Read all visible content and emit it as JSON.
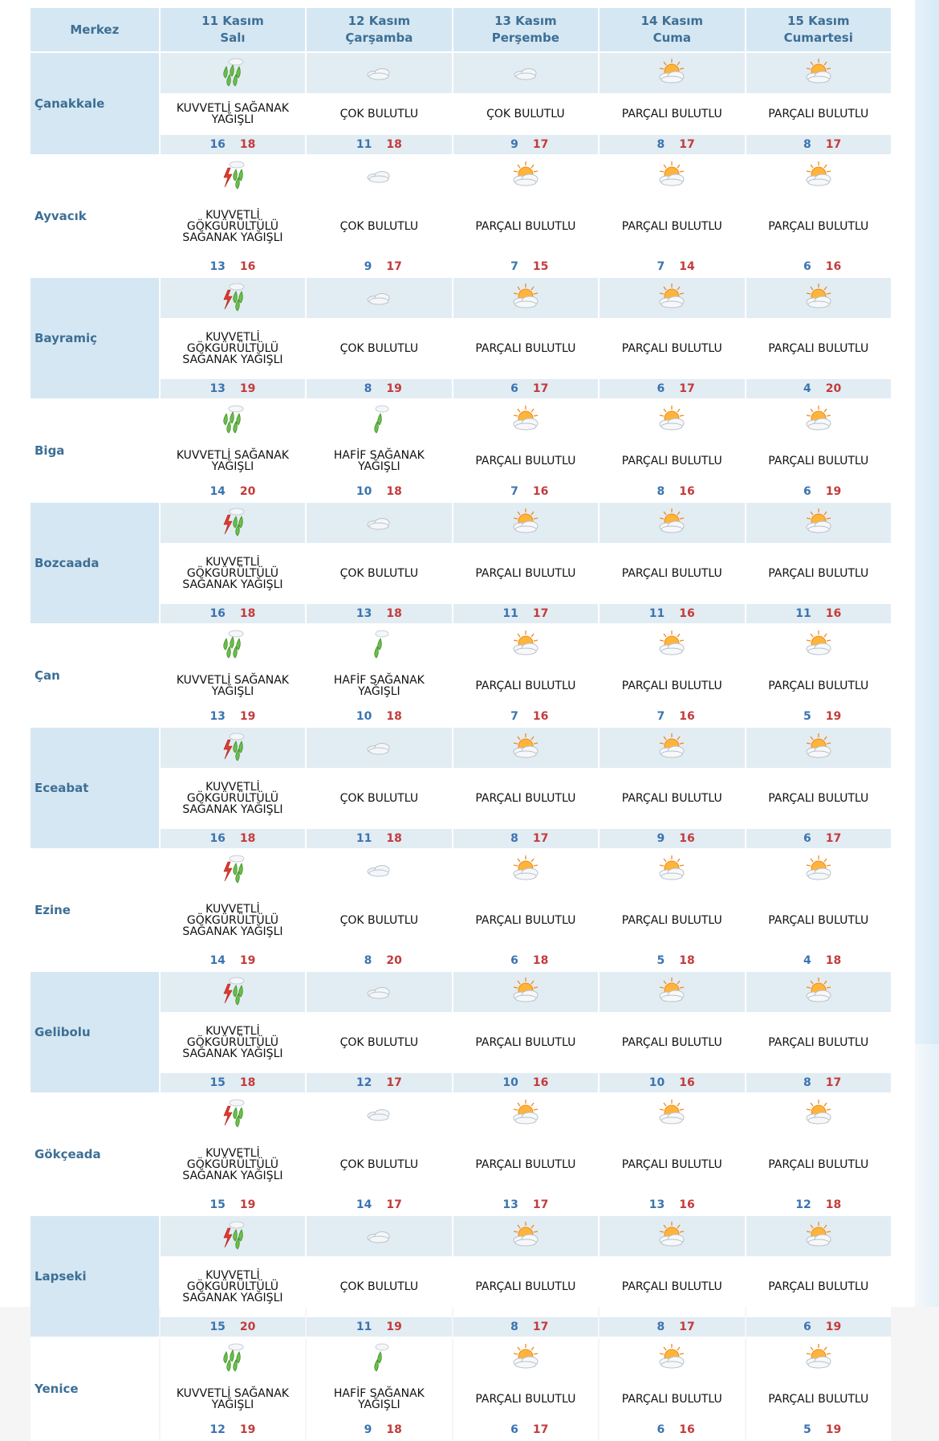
{
  "header": {
    "city_label": "Merkez",
    "days": [
      {
        "date": "11 Kasım",
        "weekday": "Salı"
      },
      {
        "date": "12 Kasım",
        "weekday": "Çarşamba"
      },
      {
        "date": "13 Kasım",
        "weekday": "Perşembe"
      },
      {
        "date": "14 Kasım",
        "weekday": "Cuma"
      },
      {
        "date": "15 Kasım",
        "weekday": "Cumartesi"
      }
    ]
  },
  "colors": {
    "header_bg": "#d5e7f2",
    "header_text": "#3d6f96",
    "min_temp": "#3b74b0",
    "max_temp": "#c43b3b",
    "shaded_row": "#e2ecf3"
  },
  "rows": [
    {
      "city": "Çanakkale",
      "days": [
        {
          "icon": "heavy-shower-icon",
          "desc": "KUVVETLİ SAĞANAK YAĞIŞLI",
          "min": "16",
          "max": "18"
        },
        {
          "icon": "cloudy-icon",
          "desc": "ÇOK BULUTLU",
          "min": "11",
          "max": "18"
        },
        {
          "icon": "cloudy-icon",
          "desc": "ÇOK BULUTLU",
          "min": "9",
          "max": "17"
        },
        {
          "icon": "partly-cloudy-icon",
          "desc": "PARÇALI BULUTLU",
          "min": "8",
          "max": "17"
        },
        {
          "icon": "partly-cloudy-icon",
          "desc": "PARÇALI BULUTLU",
          "min": "8",
          "max": "17"
        }
      ]
    },
    {
      "city": "Ayvacık",
      "days": [
        {
          "icon": "thunder-shower-icon",
          "desc": "KUVVETLİ GÖKGÜRÜLTÜLÜ SAĞANAK YAĞIŞLI",
          "min": "13",
          "max": "16"
        },
        {
          "icon": "cloudy-icon",
          "desc": "ÇOK BULUTLU",
          "min": "9",
          "max": "17"
        },
        {
          "icon": "partly-cloudy-icon",
          "desc": "PARÇALI BULUTLU",
          "min": "7",
          "max": "15"
        },
        {
          "icon": "partly-cloudy-icon",
          "desc": "PARÇALI BULUTLU",
          "min": "7",
          "max": "14"
        },
        {
          "icon": "partly-cloudy-icon",
          "desc": "PARÇALI BULUTLU",
          "min": "6",
          "max": "16"
        }
      ]
    },
    {
      "city": "Bayramiç",
      "days": [
        {
          "icon": "thunder-shower-icon",
          "desc": "KUVVETLİ GÖKGÜRÜLTÜLÜ SAĞANAK YAĞIŞLI",
          "min": "13",
          "max": "19"
        },
        {
          "icon": "cloudy-icon",
          "desc": "ÇOK BULUTLU",
          "min": "8",
          "max": "19"
        },
        {
          "icon": "partly-cloudy-icon",
          "desc": "PARÇALI BULUTLU",
          "min": "6",
          "max": "17"
        },
        {
          "icon": "partly-cloudy-icon",
          "desc": "PARÇALI BULUTLU",
          "min": "6",
          "max": "17"
        },
        {
          "icon": "partly-cloudy-icon",
          "desc": "PARÇALI BULUTLU",
          "min": "4",
          "max": "20"
        }
      ]
    },
    {
      "city": "Biga",
      "days": [
        {
          "icon": "heavy-shower-icon",
          "desc": "KUVVETLİ SAĞANAK YAĞIŞLI",
          "min": "14",
          "max": "20"
        },
        {
          "icon": "light-shower-icon",
          "desc": "HAFİF SAĞANAK YAĞIŞLI",
          "min": "10",
          "max": "18"
        },
        {
          "icon": "partly-cloudy-icon",
          "desc": "PARÇALI BULUTLU",
          "min": "7",
          "max": "16"
        },
        {
          "icon": "partly-cloudy-icon",
          "desc": "PARÇALI BULUTLU",
          "min": "8",
          "max": "16"
        },
        {
          "icon": "partly-cloudy-icon",
          "desc": "PARÇALI BULUTLU",
          "min": "6",
          "max": "19"
        }
      ]
    },
    {
      "city": "Bozcaada",
      "days": [
        {
          "icon": "thunder-shower-icon",
          "desc": "KUVVETLİ GÖKGÜRÜLTÜLÜ SAĞANAK YAĞIŞLI",
          "min": "16",
          "max": "18"
        },
        {
          "icon": "cloudy-icon",
          "desc": "ÇOK BULUTLU",
          "min": "13",
          "max": "18"
        },
        {
          "icon": "partly-cloudy-icon",
          "desc": "PARÇALI BULUTLU",
          "min": "11",
          "max": "17"
        },
        {
          "icon": "partly-cloudy-icon",
          "desc": "PARÇALI BULUTLU",
          "min": "11",
          "max": "16"
        },
        {
          "icon": "partly-cloudy-icon",
          "desc": "PARÇALI BULUTLU",
          "min": "11",
          "max": "16"
        }
      ]
    },
    {
      "city": "Çan",
      "days": [
        {
          "icon": "heavy-shower-icon",
          "desc": "KUVVETLİ SAĞANAK YAĞIŞLI",
          "min": "13",
          "max": "19"
        },
        {
          "icon": "light-shower-icon",
          "desc": "HAFİF SAĞANAK YAĞIŞLI",
          "min": "10",
          "max": "18"
        },
        {
          "icon": "partly-cloudy-icon",
          "desc": "PARÇALI BULUTLU",
          "min": "7",
          "max": "16"
        },
        {
          "icon": "partly-cloudy-icon",
          "desc": "PARÇALI BULUTLU",
          "min": "7",
          "max": "16"
        },
        {
          "icon": "partly-cloudy-icon",
          "desc": "PARÇALI BULUTLU",
          "min": "5",
          "max": "19"
        }
      ]
    },
    {
      "city": "Eceabat",
      "days": [
        {
          "icon": "thunder-shower-icon",
          "desc": "KUVVETLİ GÖKGÜRÜLTÜLÜ SAĞANAK YAĞIŞLI",
          "min": "16",
          "max": "18"
        },
        {
          "icon": "cloudy-icon",
          "desc": "ÇOK BULUTLU",
          "min": "11",
          "max": "18"
        },
        {
          "icon": "partly-cloudy-icon",
          "desc": "PARÇALI BULUTLU",
          "min": "8",
          "max": "17"
        },
        {
          "icon": "partly-cloudy-icon",
          "desc": "PARÇALI BULUTLU",
          "min": "9",
          "max": "16"
        },
        {
          "icon": "partly-cloudy-icon",
          "desc": "PARÇALI BULUTLU",
          "min": "6",
          "max": "17"
        }
      ]
    },
    {
      "city": "Ezine",
      "days": [
        {
          "icon": "thunder-shower-icon",
          "desc": "KUVVETLİ GÖKGÜRÜLTÜLÜ SAĞANAK YAĞIŞLI",
          "min": "14",
          "max": "19"
        },
        {
          "icon": "cloudy-icon",
          "desc": "ÇOK BULUTLU",
          "min": "8",
          "max": "20"
        },
        {
          "icon": "partly-cloudy-icon",
          "desc": "PARÇALI BULUTLU",
          "min": "6",
          "max": "18"
        },
        {
          "icon": "partly-cloudy-icon",
          "desc": "PARÇALI BULUTLU",
          "min": "5",
          "max": "18"
        },
        {
          "icon": "partly-cloudy-icon",
          "desc": "PARÇALI BULUTLU",
          "min": "4",
          "max": "18"
        }
      ]
    },
    {
      "city": "Gelibolu",
      "days": [
        {
          "icon": "thunder-shower-icon",
          "desc": "KUVVETLİ GÖKGÜRÜLTÜLÜ SAĞANAK YAĞIŞLI",
          "min": "15",
          "max": "18"
        },
        {
          "icon": "cloudy-icon",
          "desc": "ÇOK BULUTLU",
          "min": "12",
          "max": "17"
        },
        {
          "icon": "partly-cloudy-icon",
          "desc": "PARÇALI BULUTLU",
          "min": "10",
          "max": "16"
        },
        {
          "icon": "partly-cloudy-icon",
          "desc": "PARÇALI BULUTLU",
          "min": "10",
          "max": "16"
        },
        {
          "icon": "partly-cloudy-icon",
          "desc": "PARÇALI BULUTLU",
          "min": "8",
          "max": "17"
        }
      ]
    },
    {
      "city": "Gökçeada",
      "days": [
        {
          "icon": "thunder-shower-icon",
          "desc": "KUVVETLİ GÖKGÜRÜLTÜLÜ SAĞANAK YAĞIŞLI",
          "min": "15",
          "max": "19"
        },
        {
          "icon": "cloudy-icon",
          "desc": "ÇOK BULUTLU",
          "min": "14",
          "max": "17"
        },
        {
          "icon": "partly-cloudy-icon",
          "desc": "PARÇALI BULUTLU",
          "min": "13",
          "max": "17"
        },
        {
          "icon": "partly-cloudy-icon",
          "desc": "PARÇALI BULUTLU",
          "min": "13",
          "max": "16"
        },
        {
          "icon": "partly-cloudy-icon",
          "desc": "PARÇALI BULUTLU",
          "min": "12",
          "max": "18"
        }
      ]
    },
    {
      "city": "Lapseki",
      "days": [
        {
          "icon": "thunder-shower-icon",
          "desc": "KUVVETLİ GÖKGÜRÜLTÜLÜ SAĞANAK YAĞIŞLI",
          "min": "15",
          "max": "20"
        },
        {
          "icon": "cloudy-icon",
          "desc": "ÇOK BULUTLU",
          "min": "11",
          "max": "19"
        },
        {
          "icon": "partly-cloudy-icon",
          "desc": "PARÇALI BULUTLU",
          "min": "8",
          "max": "17"
        },
        {
          "icon": "partly-cloudy-icon",
          "desc": "PARÇALI BULUTLU",
          "min": "8",
          "max": "17"
        },
        {
          "icon": "partly-cloudy-icon",
          "desc": "PARÇALI BULUTLU",
          "min": "6",
          "max": "19"
        }
      ]
    },
    {
      "city": "Yenice",
      "days": [
        {
          "icon": "heavy-shower-icon",
          "desc": "KUVVETLİ SAĞANAK YAĞIŞLI",
          "min": "12",
          "max": "19"
        },
        {
          "icon": "light-shower-icon",
          "desc": "HAFİF SAĞANAK YAĞIŞLI",
          "min": "9",
          "max": "18"
        },
        {
          "icon": "partly-cloudy-icon",
          "desc": "PARÇALI BULUTLU",
          "min": "6",
          "max": "17"
        },
        {
          "icon": "partly-cloudy-icon",
          "desc": "PARÇALI BULUTLU",
          "min": "6",
          "max": "16"
        },
        {
          "icon": "partly-cloudy-icon",
          "desc": "PARÇALI BULUTLU",
          "min": "5",
          "max": "19"
        }
      ]
    }
  ]
}
